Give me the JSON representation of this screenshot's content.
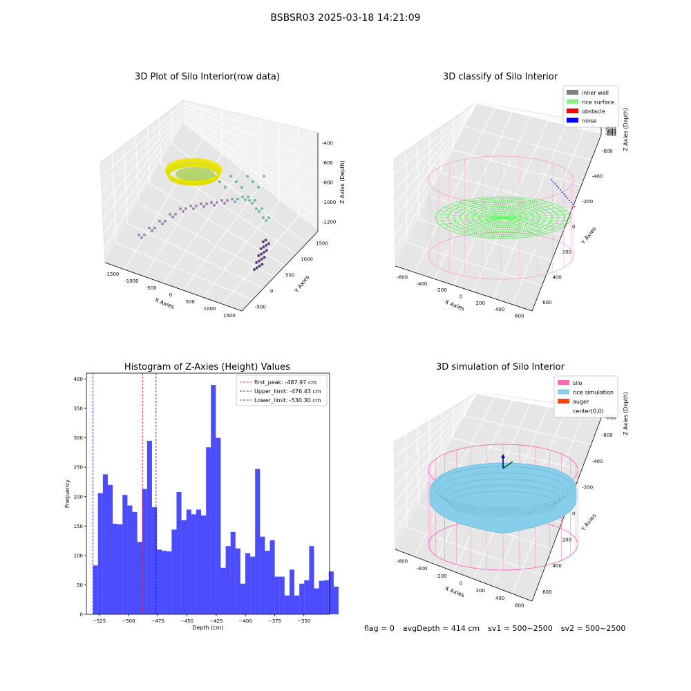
{
  "suptitle": "BSBSR03 2025-03-18 14:21:09",
  "footer": {
    "flag": "flag = 0",
    "avg": "avgDepth = 414 cm",
    "sv1": "sv1 = 500~2500",
    "sv2": "sv2 = 500~2500"
  },
  "chart_data": [
    {
      "type": "scatter",
      "title": "3D Plot of Silo Interior(row data)",
      "xlabel": "X Axies",
      "ylabel": "Y Axies",
      "zlabel": "Z Axies (Depth)",
      "x_ticks": [
        "-1500",
        "-1000",
        "-500",
        "0",
        "500",
        "1000",
        "1500"
      ],
      "y_ticks": [
        "-500",
        "0",
        "500",
        "1000",
        "1500"
      ],
      "z_ticks": [
        "-400",
        "-600",
        "-800",
        "-1000",
        "-1200"
      ],
      "grid": true
    },
    {
      "type": "scatter",
      "title": "3D classify of Silo Interior",
      "xlabel": "X Axies",
      "ylabel": "Y Axies",
      "zlabel": "Z Axies (Depth)",
      "x_ticks": [
        "-600",
        "-400",
        "-200",
        "0",
        "200",
        "400",
        "600"
      ],
      "y_ticks": [
        "600",
        "400",
        "200",
        "0",
        "-200",
        "-400",
        "-600"
      ],
      "z_ticks": [
        "200",
        "0",
        "-200",
        "-400",
        "-600",
        "-800"
      ],
      "legend": [
        {
          "label": "inner wall",
          "color": "#808080"
        },
        {
          "label": "rice surface",
          "color": "#90ee90"
        },
        {
          "label": "obstacle",
          "color": "#ff0000"
        },
        {
          "label": "noise",
          "color": "#0000ff"
        }
      ],
      "legend_position": "top-right",
      "grid": true
    },
    {
      "type": "bar",
      "title": "Histogram of Z-Axies (Height) Values",
      "xlabel": "Depth (cm)",
      "ylabel": "Frequency",
      "xlim": [
        -536,
        -328
      ],
      "ylim": [
        0,
        410
      ],
      "x_ticks": [
        -525,
        -500,
        -475,
        -450,
        -425,
        -400,
        -375,
        -350
      ],
      "y_ticks": [
        0,
        50,
        100,
        150,
        200,
        250,
        300,
        350,
        400
      ],
      "bin_start": -530.3,
      "bin_width": 4.2,
      "values": [
        83,
        206,
        238,
        220,
        154,
        153,
        203,
        185,
        174,
        123,
        213,
        295,
        182,
        110,
        108,
        107,
        144,
        208,
        160,
        178,
        170,
        178,
        168,
        284,
        390,
        300,
        79,
        116,
        140,
        112,
        52,
        104,
        98,
        247,
        132,
        108,
        126,
        64,
        64,
        32,
        76,
        32,
        52,
        58,
        116,
        44,
        57,
        58,
        73,
        47
      ],
      "bar_color": "#0000ff",
      "lines": [
        {
          "label": "first_peak: -487.97 cm",
          "x": -487.97,
          "color": "#ff0000"
        },
        {
          "label": "Upper_limit: -476.43 cm",
          "x": -476.43,
          "color": "#00008b"
        },
        {
          "label": "Lower_limit: -530.30 cm",
          "x": -530.3,
          "color": "#0000ff"
        }
      ],
      "legend_position": "top-right"
    },
    {
      "type": "scatter",
      "title": "3D simulation of Silo Interior",
      "xlabel": "X Axies",
      "ylabel": "Y Axies",
      "zlabel": "Z Axies (Depth)",
      "x_ticks": [
        "-600",
        "-400",
        "-200",
        "0",
        "200",
        "400",
        "600"
      ],
      "y_ticks": [
        "600",
        "400",
        "200",
        "0",
        "-200",
        "-400",
        "-600"
      ],
      "z_ticks": [
        "200",
        "0",
        "-200",
        "-400",
        "-600",
        "-800"
      ],
      "legend": [
        {
          "label": "silo",
          "color": "#ff69b4"
        },
        {
          "label": "rice simulation",
          "color": "#87ceeb"
        },
        {
          "label": "auger",
          "color": "#ff4500"
        },
        {
          "label": "center(0,0)",
          "color": "#ffffff"
        }
      ],
      "legend_position": "top-right",
      "grid": true
    }
  ]
}
